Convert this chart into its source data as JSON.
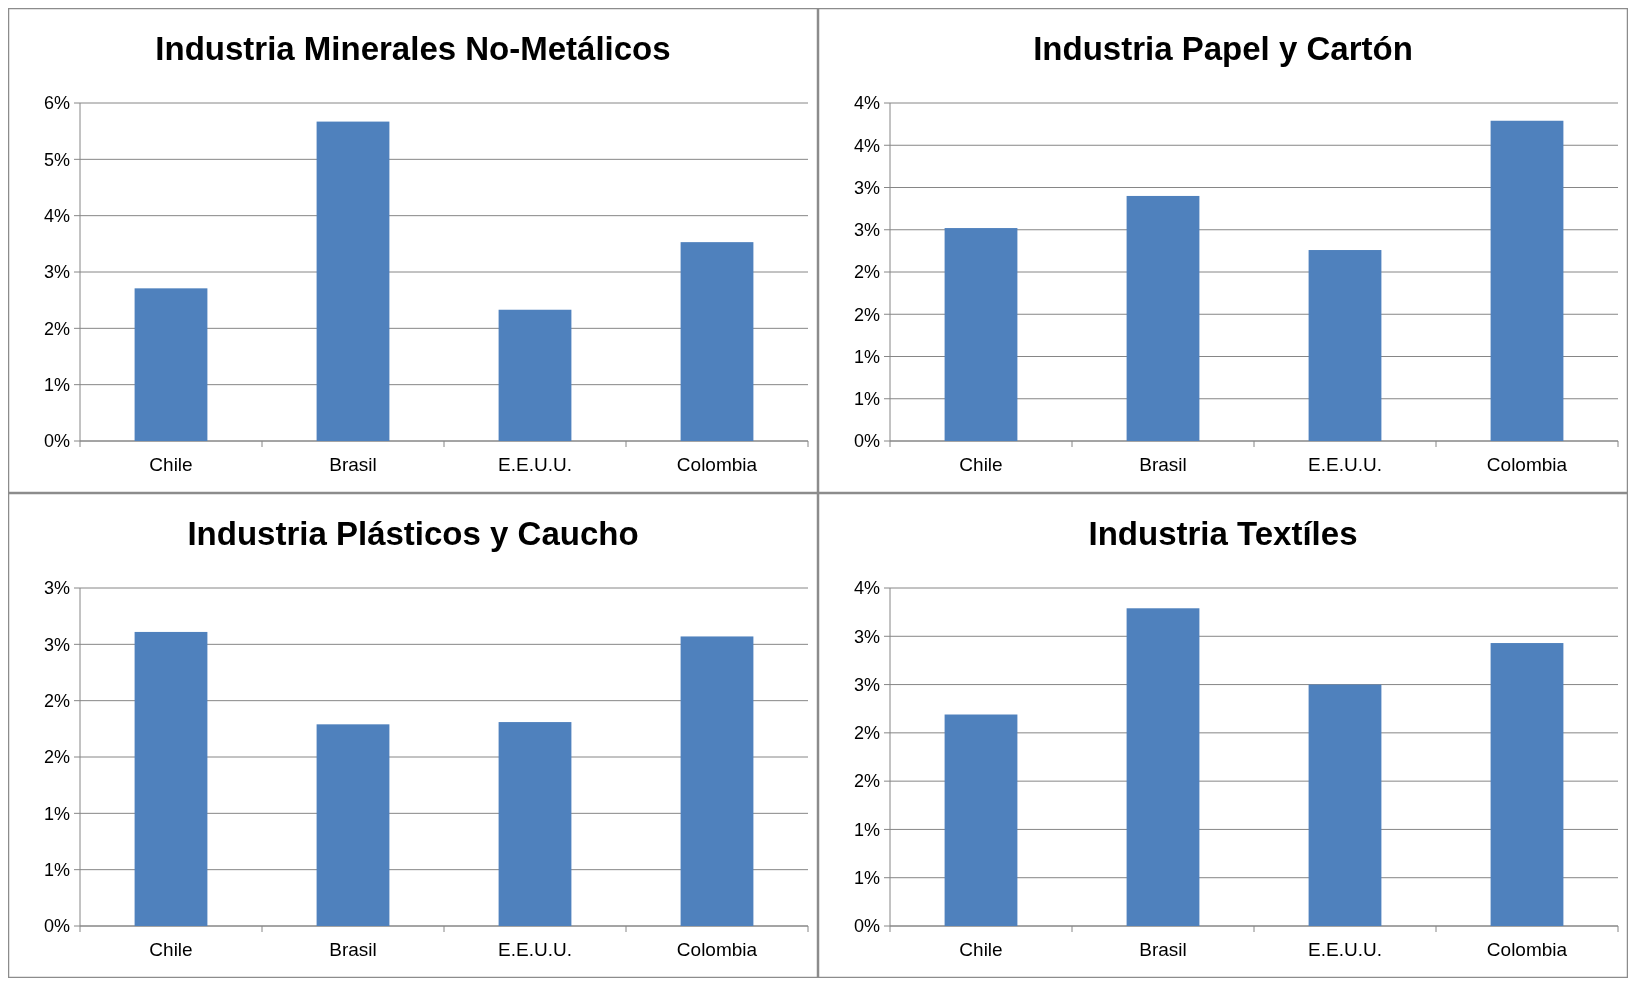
{
  "chart_data": [
    {
      "type": "bar",
      "title": "Industria Minerales No-Metálicos",
      "categories": [
        "Chile",
        "Brasil",
        "E.E.U.U.",
        "Colombia"
      ],
      "values": [
        2.71,
        5.67,
        2.33,
        3.53
      ],
      "color": "#4f81bd",
      "ylim": [
        0,
        6
      ],
      "yticks": [
        {
          "value": 0,
          "label": "0%"
        },
        {
          "value": 1,
          "label": "1%"
        },
        {
          "value": 2,
          "label": "2%"
        },
        {
          "value": 3,
          "label": "3%"
        },
        {
          "value": 4,
          "label": "4%"
        },
        {
          "value": 5,
          "label": "5%"
        },
        {
          "value": 6,
          "label": "6%"
        }
      ],
      "grid": "y"
    },
    {
      "type": "bar",
      "title": "Industria Papel y Cartón",
      "categories": [
        "Chile",
        "Brasil",
        "E.E.U.U.",
        "Colombia"
      ],
      "values": [
        2.52,
        2.9,
        2.26,
        3.79
      ],
      "color": "#4f81bd",
      "ylim": [
        0,
        4
      ],
      "yticks": [
        {
          "value": 0,
          "label": "0%"
        },
        {
          "value": 0.5,
          "label": "1%"
        },
        {
          "value": 1,
          "label": "1%"
        },
        {
          "value": 1.5,
          "label": "2%"
        },
        {
          "value": 2,
          "label": "2%"
        },
        {
          "value": 2.5,
          "label": "3%"
        },
        {
          "value": 3,
          "label": "3%"
        },
        {
          "value": 3.5,
          "label": "4%"
        },
        {
          "value": 4,
          "label": "4%"
        }
      ],
      "grid": "y"
    },
    {
      "type": "bar",
      "title": "Industria Plásticos y Caucho",
      "categories": [
        "Chile",
        "Brasil",
        "E.E.U.U.",
        "Colombia"
      ],
      "values": [
        2.61,
        1.79,
        1.81,
        2.57
      ],
      "color": "#4f81bd",
      "ylim": [
        0,
        3
      ],
      "yticks": [
        {
          "value": 0,
          "label": "0%"
        },
        {
          "value": 0.5,
          "label": "1%"
        },
        {
          "value": 1,
          "label": "1%"
        },
        {
          "value": 1.5,
          "label": "2%"
        },
        {
          "value": 2,
          "label": "2%"
        },
        {
          "value": 2.5,
          "label": "3%"
        },
        {
          "value": 3,
          "label": "3%"
        }
      ],
      "grid": "y"
    },
    {
      "type": "bar",
      "title": "Industria Textíles",
      "categories": [
        "Chile",
        "Brasil",
        "E.E.U.U.",
        "Colombia"
      ],
      "values": [
        2.19,
        3.29,
        2.5,
        2.93
      ],
      "color": "#4f81bd",
      "ylim": [
        0,
        3.5
      ],
      "yticks": [
        {
          "value": 0,
          "label": "0%"
        },
        {
          "value": 0.5,
          "label": "1%"
        },
        {
          "value": 1,
          "label": "1%"
        },
        {
          "value": 1.5,
          "label": "2%"
        },
        {
          "value": 2,
          "label": "2%"
        },
        {
          "value": 2.5,
          "label": "3%"
        },
        {
          "value": 3,
          "label": "3%"
        },
        {
          "value": 3.5,
          "label": "4%"
        }
      ],
      "grid": "y"
    }
  ]
}
